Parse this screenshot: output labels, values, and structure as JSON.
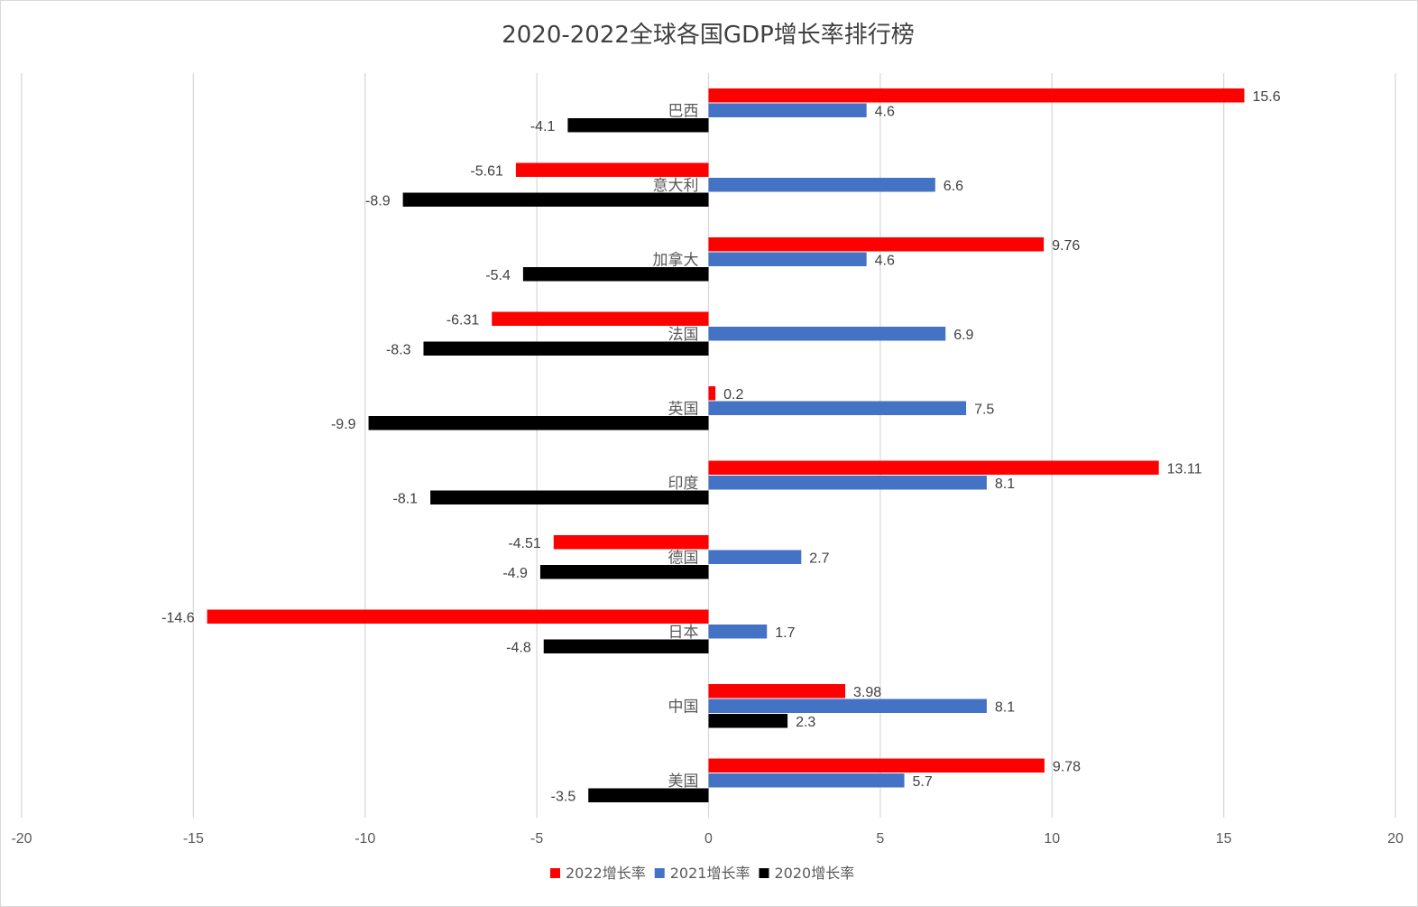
{
  "chart_data": {
    "type": "bar",
    "orientation": "horizontal",
    "title": "2020-2022全球各国GDP增长率排行榜",
    "categories": [
      "巴西",
      "意大利",
      "加拿大",
      "法国",
      "英国",
      "印度",
      "德国",
      "日本",
      "中国",
      "美国"
    ],
    "series": [
      {
        "name": "2022增长率",
        "color": "#ff0000",
        "values": [
          15.6,
          -5.61,
          9.76,
          -6.31,
          0.2,
          13.11,
          -4.51,
          -14.6,
          3.98,
          9.78
        ]
      },
      {
        "name": "2021增长率",
        "color": "#4472c4",
        "values": [
          4.6,
          6.6,
          4.6,
          6.9,
          7.5,
          8.1,
          2.7,
          1.7,
          8.1,
          5.7
        ]
      },
      {
        "name": "2020增长率",
        "color": "#000000",
        "values": [
          -4.1,
          -8.9,
          -5.4,
          -8.3,
          -9.9,
          -8.1,
          -4.9,
          -4.8,
          2.3,
          -3.5
        ]
      }
    ],
    "xlim": [
      -20,
      20
    ],
    "xticks": [
      "-20",
      "-15",
      "-10",
      "-5",
      "0",
      "5",
      "10",
      "15",
      "20"
    ],
    "grid": true,
    "legend_position": "bottom"
  }
}
